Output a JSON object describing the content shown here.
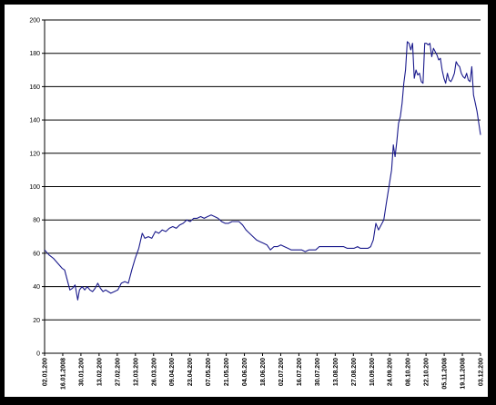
{
  "chart_data": {
    "type": "line",
    "title": "",
    "xlabel": "",
    "ylabel": "",
    "ylim": [
      0,
      200
    ],
    "yticks": [
      0,
      20,
      40,
      60,
      80,
      100,
      120,
      140,
      160,
      180,
      200
    ],
    "grid": "horizontal",
    "legend": "none",
    "x_tick_labels": [
      "02.01.200",
      "16.01.2008",
      "30.01.200",
      "13.02.200",
      "27.02.200",
      "12.03.200",
      "26.03.200",
      "09.04.200",
      "23.04.200",
      "07.05.200",
      "21.05.200",
      "04.06.200",
      "18.06.200",
      "02.07.200",
      "16.07.200",
      "30.07.200",
      "13.08.200",
      "27.08.200",
      "10.09.200",
      "24.09.200",
      "08.10.200",
      "22.10.200",
      "05.11.2008",
      "19.11.2008",
      "03.12.200"
    ],
    "series": [
      {
        "color": "#1a1a8c",
        "values": [
          [
            0,
            62
          ],
          [
            0.5,
            59
          ],
          [
            1,
            57
          ],
          [
            1.5,
            54
          ],
          [
            2,
            51
          ],
          [
            2.3,
            50
          ],
          [
            2.6,
            44
          ],
          [
            2.9,
            38
          ],
          [
            3.2,
            39
          ],
          [
            3.5,
            41
          ],
          [
            3.8,
            32
          ],
          [
            4.0,
            38
          ],
          [
            4.3,
            40
          ],
          [
            4.6,
            38
          ],
          [
            4.9,
            40
          ],
          [
            5.2,
            38
          ],
          [
            5.5,
            37
          ],
          [
            5.8,
            39
          ],
          [
            6.1,
            42
          ],
          [
            6.4,
            39
          ],
          [
            6.7,
            37
          ],
          [
            7.0,
            38
          ],
          [
            7.3,
            37
          ],
          [
            7.6,
            36
          ],
          [
            8.0,
            37
          ],
          [
            8.4,
            38
          ],
          [
            8.8,
            42
          ],
          [
            9.2,
            43
          ],
          [
            9.6,
            42
          ],
          [
            10.0,
            50
          ],
          [
            10.4,
            57
          ],
          [
            10.8,
            63
          ],
          [
            11.2,
            72
          ],
          [
            11.5,
            69
          ],
          [
            11.9,
            70
          ],
          [
            12.3,
            69
          ],
          [
            12.7,
            73
          ],
          [
            13.1,
            72
          ],
          [
            13.5,
            74
          ],
          [
            13.9,
            73
          ],
          [
            14.3,
            75
          ],
          [
            14.7,
            76
          ],
          [
            15.1,
            75
          ],
          [
            15.5,
            77
          ],
          [
            15.9,
            78
          ],
          [
            16.3,
            80
          ],
          [
            16.7,
            79
          ],
          [
            17.1,
            81
          ],
          [
            17.5,
            81
          ],
          [
            17.9,
            82
          ],
          [
            18.3,
            81
          ],
          [
            18.7,
            82
          ],
          [
            19.1,
            83
          ],
          [
            19.5,
            82
          ],
          [
            19.9,
            81
          ],
          [
            20.3,
            79
          ],
          [
            20.7,
            78
          ],
          [
            21.1,
            78
          ],
          [
            21.5,
            79
          ],
          [
            21.9,
            79
          ],
          [
            22.3,
            79
          ],
          [
            22.7,
            77
          ],
          [
            23.1,
            74
          ],
          [
            23.5,
            72
          ],
          [
            23.9,
            70
          ],
          [
            24.3,
            68
          ],
          [
            24.7,
            67
          ],
          [
            25.1,
            66
          ],
          [
            25.5,
            65
          ],
          [
            25.9,
            62
          ],
          [
            26.3,
            64
          ],
          [
            26.7,
            64
          ],
          [
            27.1,
            65
          ],
          [
            27.5,
            64
          ],
          [
            27.9,
            63
          ],
          [
            28.3,
            62
          ],
          [
            28.7,
            62
          ],
          [
            29.1,
            62
          ],
          [
            29.5,
            62
          ],
          [
            29.9,
            61
          ],
          [
            30.3,
            62
          ],
          [
            30.7,
            62
          ],
          [
            31.1,
            62
          ],
          [
            31.5,
            64
          ],
          [
            31.9,
            64
          ],
          [
            32.3,
            64
          ],
          [
            32.7,
            64
          ],
          [
            33.1,
            64
          ],
          [
            33.5,
            64
          ],
          [
            33.9,
            64
          ],
          [
            34.3,
            64
          ],
          [
            34.7,
            63
          ],
          [
            35.1,
            63
          ],
          [
            35.5,
            63
          ],
          [
            35.9,
            64
          ],
          [
            36.2,
            63
          ],
          [
            36.5,
            63
          ],
          [
            36.8,
            63
          ],
          [
            37.1,
            63
          ],
          [
            37.4,
            64
          ],
          [
            37.7,
            68
          ],
          [
            38.0,
            78
          ],
          [
            38.3,
            74
          ],
          [
            38.6,
            77
          ],
          [
            38.9,
            80
          ],
          [
            39.2,
            90
          ],
          [
            39.5,
            100
          ],
          [
            39.8,
            110
          ],
          [
            40.0,
            125
          ],
          [
            40.2,
            118
          ],
          [
            40.4,
            127
          ],
          [
            40.6,
            138
          ],
          [
            40.8,
            142
          ],
          [
            41.0,
            150
          ],
          [
            41.2,
            162
          ],
          [
            41.4,
            170
          ],
          [
            41.6,
            187
          ],
          [
            41.8,
            186
          ],
          [
            42.0,
            182
          ],
          [
            42.2,
            186
          ],
          [
            42.4,
            165
          ],
          [
            42.6,
            170
          ],
          [
            42.8,
            167
          ],
          [
            43.0,
            168
          ],
          [
            43.2,
            163
          ],
          [
            43.4,
            162
          ],
          [
            43.6,
            186
          ],
          [
            43.8,
            186
          ],
          [
            44.0,
            185
          ],
          [
            44.2,
            186
          ],
          [
            44.4,
            178
          ],
          [
            44.6,
            183
          ],
          [
            44.8,
            181
          ],
          [
            45.0,
            179
          ],
          [
            45.2,
            176
          ],
          [
            45.4,
            177
          ],
          [
            45.6,
            170
          ],
          [
            45.8,
            165
          ],
          [
            46.0,
            162
          ],
          [
            46.2,
            168
          ],
          [
            46.4,
            164
          ],
          [
            46.6,
            163
          ],
          [
            46.8,
            165
          ],
          [
            47.0,
            168
          ],
          [
            47.2,
            175
          ],
          [
            47.4,
            173
          ],
          [
            47.6,
            172
          ],
          [
            47.8,
            168
          ],
          [
            48.0,
            166
          ],
          [
            48.2,
            165
          ],
          [
            48.4,
            168
          ],
          [
            48.6,
            164
          ],
          [
            48.8,
            163
          ],
          [
            49.0,
            172
          ],
          [
            49.2,
            155
          ],
          [
            49.4,
            150
          ],
          [
            49.6,
            145
          ],
          [
            49.8,
            138
          ],
          [
            50.0,
            131
          ]
        ]
      }
    ]
  }
}
